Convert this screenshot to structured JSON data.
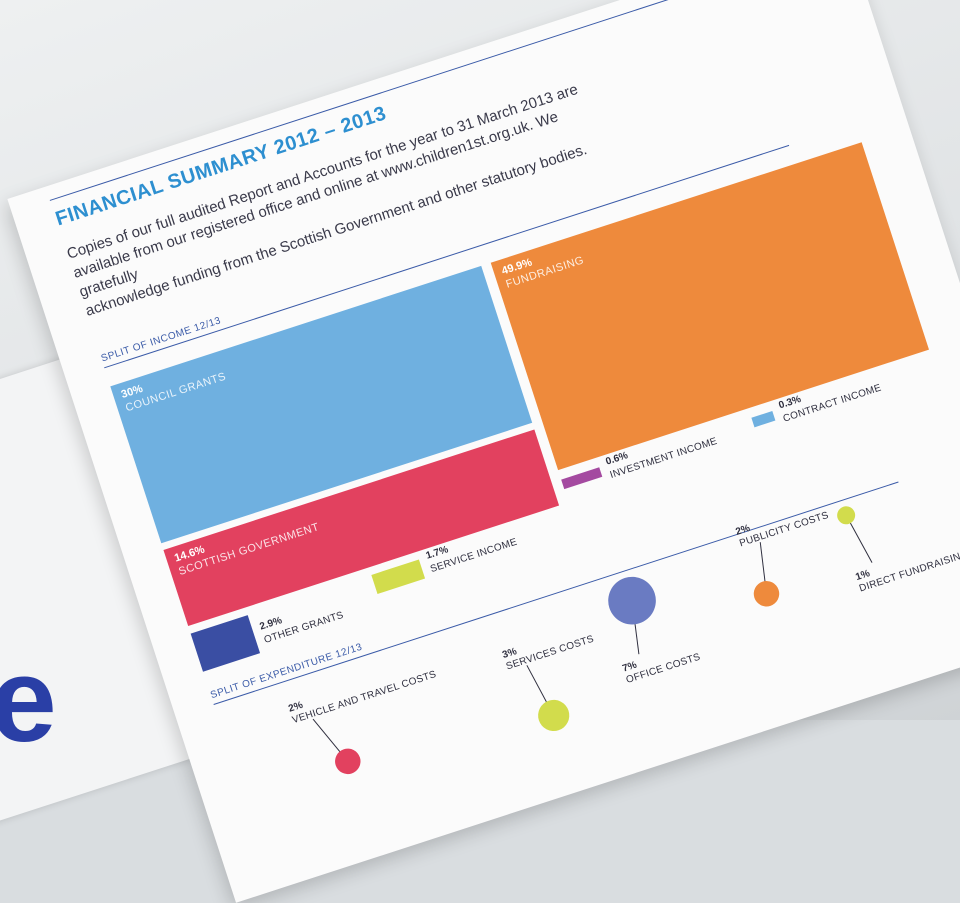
{
  "document": {
    "title": "FINANCIAL SUMMARY 2012 – 2013",
    "intro_lines": [
      "Copies of our full audited Report and Accounts for the year to 31 March 2013 are",
      "available from our registered office and online at www.children1st.org.uk. We gratefully",
      "acknowledge funding from the Scottish Government and other statutory bodies."
    ],
    "income_section_label": "SPLIT OF INCOME 12/13",
    "expenditure_section_label": "SPLIT OF EXPENDITURE 12/13",
    "left_page_letter": "e"
  },
  "chart_data": [
    {
      "type": "treemap",
      "title": "SPLIT OF INCOME 12/13",
      "unit": "%",
      "items": [
        {
          "label": "FUNDRAISING",
          "value_label": "49.9%",
          "value": 49.9,
          "color": "#ee8a3c"
        },
        {
          "label": "COUNCIL GRANTS",
          "value_label": "30%",
          "value": 30,
          "color": "#6fb0e0"
        },
        {
          "label": "SCOTTISH GOVERNMENT",
          "value_label": "14.6%",
          "value": 14.6,
          "color": "#e2415f"
        },
        {
          "label": "OTHER GRANTS",
          "value_label": "2.9%",
          "value": 2.9,
          "color": "#3a4ea3"
        },
        {
          "label": "SERVICE INCOME",
          "value_label": "1.7%",
          "value": 1.7,
          "color": "#d2dc4c"
        },
        {
          "label": "INVESTMENT INCOME",
          "value_label": "0.6%",
          "value": 0.6,
          "color": "#a44aa0"
        },
        {
          "label": "CONTRACT INCOME",
          "value_label": "0.3%",
          "value": 0.3,
          "color": "#6fb0e0"
        }
      ]
    },
    {
      "type": "bubble",
      "title": "SPLIT OF EXPENDITURE 12/13",
      "unit": "%",
      "items": [
        {
          "label": "VEHICLE AND TRAVEL COSTS",
          "value_label": "2%",
          "value": 2,
          "color": "#e2415f"
        },
        {
          "label": "SERVICES COSTS",
          "value_label": "3%",
          "value": 3,
          "color": "#d2dc4c"
        },
        {
          "label": "OFFICE COSTS",
          "value_label": "7%",
          "value": 7,
          "color": "#6a7bc2"
        },
        {
          "label": "PUBLICITY COSTS",
          "value_label": "2%",
          "value": 2,
          "color": "#ee8a3c"
        },
        {
          "label": "DIRECT FUNDRAISING EXPENDITURE",
          "value_label": "1%",
          "value": 1,
          "color": "#d2dc4c"
        }
      ]
    }
  ]
}
